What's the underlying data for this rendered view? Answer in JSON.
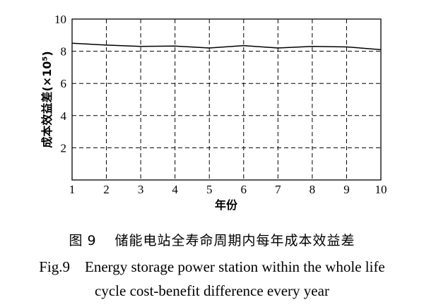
{
  "chart_data": {
    "type": "line",
    "xlabel": "年份",
    "ylabel": "成本效益差(×10⁵)",
    "x": [
      1,
      2,
      3,
      4,
      5,
      6,
      7,
      8,
      9,
      10
    ],
    "xticks": [
      "1",
      "2",
      "3",
      "4",
      "5",
      "6",
      "7",
      "8",
      "9",
      "10"
    ],
    "yticks": [
      "2",
      "4",
      "6",
      "8",
      "10"
    ],
    "xlim": [
      1,
      10
    ],
    "ylim": [
      0,
      10
    ],
    "grid": true,
    "grid_style": "dashed",
    "series": [
      {
        "values": [
          8.5,
          8.38,
          8.3,
          8.32,
          8.2,
          8.35,
          8.2,
          8.3,
          8.27,
          8.1
        ],
        "color": "#000000"
      }
    ]
  },
  "caption": {
    "cn_prefix": "图",
    "cn_number": "9",
    "cn_text": "储能电站全寿命周期内每年成本效益差",
    "en_line1": "Fig.9    Energy storage power station within the whole life",
    "en_line2": "cycle cost-benefit difference every year"
  }
}
